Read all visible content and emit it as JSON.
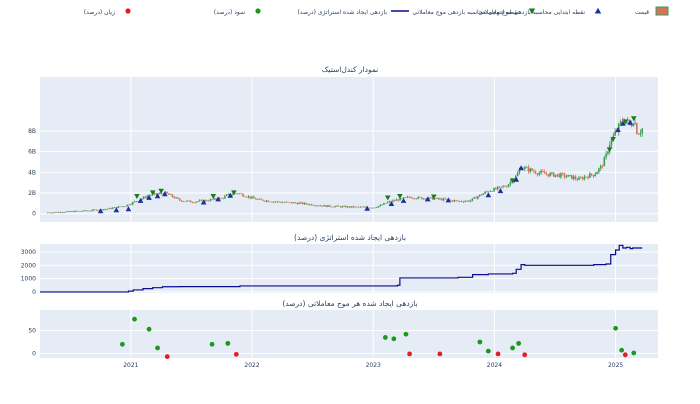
{
  "legend": {
    "items": [
      {
        "id": "price",
        "label": "قیمت",
        "symbol": "candle",
        "color": "#d2735a"
      },
      {
        "id": "entry",
        "label": "نقطه ابتدایی محاسبه بازدهی موج معاملاتی",
        "symbol": "triangle-up",
        "color": "#1c2fa0"
      },
      {
        "id": "exit",
        "label": "نقطه انتهایی محاسبه بازدهی موج معاملاتی",
        "symbol": "triangle-down",
        "color": "#1e7a1e"
      },
      {
        "id": "strategy",
        "label": "بازدهی ایجاد شده استراتژی (درصد)",
        "symbol": "line",
        "color": "#0b0b8c"
      },
      {
        "id": "profit",
        "label": "سود (درصد)",
        "symbol": "dot",
        "color": "#1a9a1a"
      },
      {
        "id": "loss",
        "label": "زیان (درصد)",
        "symbol": "dot",
        "color": "#e02020"
      }
    ]
  },
  "titles": {
    "candlestick": "نمودار کندل‌استیک",
    "strategy": "بازدهی ایجاد شده استراتژی (درصد)",
    "waves": "بازدهی ایجاد شده هر موج معاملاتی (درصد)"
  },
  "colors": {
    "plot_bg": "#e5ecf6",
    "grid": "#ffffff",
    "up": "#3f9a55",
    "down": "#d2735a",
    "line": "#0b0b8c",
    "profit": "#1a9a1a",
    "loss": "#e02020",
    "entry": "#1c2fa0",
    "exit": "#1e7a1e"
  },
  "chart_data": [
    {
      "type": "candlestick",
      "title": "نمودار کندل‌استیک",
      "x_range": [
        2020.25,
        2025.35
      ],
      "ylim": [
        -0.8,
        13.2
      ],
      "yticks": [
        0,
        2,
        4,
        6,
        8
      ],
      "ytick_labels": [
        "0",
        "2B",
        "4B",
        "6B",
        "8B"
      ],
      "grid": true,
      "price_path": [
        [
          2020.3,
          0.1
        ],
        [
          2020.5,
          0.2
        ],
        [
          2020.65,
          0.3
        ],
        [
          2020.8,
          0.45
        ],
        [
          2020.95,
          0.75
        ],
        [
          2021.0,
          1.0
        ],
        [
          2021.08,
          1.4
        ],
        [
          2021.15,
          1.8
        ],
        [
          2021.2,
          1.85
        ],
        [
          2021.28,
          2.0
        ],
        [
          2021.32,
          1.8
        ],
        [
          2021.4,
          1.3
        ],
        [
          2021.5,
          1.15
        ],
        [
          2021.6,
          1.25
        ],
        [
          2021.7,
          1.4
        ],
        [
          2021.75,
          1.5
        ],
        [
          2021.8,
          1.8
        ],
        [
          2021.88,
          2.0
        ],
        [
          2021.95,
          1.7
        ],
        [
          2022.05,
          1.35
        ],
        [
          2022.2,
          1.15
        ],
        [
          2022.4,
          1.0
        ],
        [
          2022.6,
          0.75
        ],
        [
          2022.8,
          0.65
        ],
        [
          2023.0,
          0.6
        ],
        [
          2023.05,
          0.75
        ],
        [
          2023.12,
          1.1
        ],
        [
          2023.2,
          1.35
        ],
        [
          2023.3,
          1.6
        ],
        [
          2023.4,
          1.5
        ],
        [
          2023.5,
          1.45
        ],
        [
          2023.6,
          1.35
        ],
        [
          2023.7,
          1.2
        ],
        [
          2023.8,
          1.25
        ],
        [
          2023.85,
          1.6
        ],
        [
          2023.9,
          1.9
        ],
        [
          2023.95,
          2.2
        ],
        [
          2024.02,
          2.4
        ],
        [
          2024.1,
          2.7
        ],
        [
          2024.18,
          3.6
        ],
        [
          2024.22,
          4.5
        ],
        [
          2024.27,
          4.3
        ],
        [
          2024.35,
          4.0
        ],
        [
          2024.45,
          3.8
        ],
        [
          2024.55,
          3.7
        ],
        [
          2024.65,
          3.5
        ],
        [
          2024.7,
          3.3
        ],
        [
          2024.75,
          3.6
        ],
        [
          2024.82,
          3.8
        ],
        [
          2024.88,
          4.5
        ],
        [
          2024.92,
          5.5
        ],
        [
          2024.95,
          6.8
        ],
        [
          2024.98,
          7.4
        ],
        [
          2025.02,
          8.2
        ],
        [
          2025.05,
          8.9
        ],
        [
          2025.08,
          9.1
        ],
        [
          2025.12,
          8.5
        ],
        [
          2025.15,
          9.2
        ],
        [
          2025.18,
          7.8
        ],
        [
          2025.22,
          8.2
        ]
      ],
      "entry_markers": [
        [
          2020.75,
          0.45
        ],
        [
          2020.88,
          0.55
        ],
        [
          2020.98,
          0.65
        ],
        [
          2021.08,
          1.45
        ],
        [
          2021.15,
          1.75
        ],
        [
          2021.22,
          1.9
        ],
        [
          2021.28,
          2.1
        ],
        [
          2021.6,
          1.3
        ],
        [
          2021.72,
          1.6
        ],
        [
          2021.82,
          1.95
        ],
        [
          2022.95,
          0.7
        ],
        [
          2023.15,
          1.15
        ],
        [
          2023.25,
          1.45
        ],
        [
          2023.45,
          1.6
        ],
        [
          2023.62,
          1.5
        ],
        [
          2023.95,
          2.0
        ],
        [
          2024.05,
          2.4
        ],
        [
          2024.18,
          3.5
        ],
        [
          2024.22,
          4.6
        ],
        [
          2025.02,
          8.3
        ],
        [
          2025.06,
          8.9
        ],
        [
          2025.12,
          9.0
        ]
      ],
      "exit_markers": [
        [
          2021.05,
          1.5
        ],
        [
          2021.18,
          1.85
        ],
        [
          2021.25,
          2.0
        ],
        [
          2021.68,
          1.5
        ],
        [
          2021.85,
          1.85
        ],
        [
          2023.12,
          1.35
        ],
        [
          2023.22,
          1.5
        ],
        [
          2023.5,
          1.45
        ],
        [
          2024.15,
          3.0
        ],
        [
          2024.95,
          6.0
        ],
        [
          2024.98,
          7.0
        ],
        [
          2025.08,
          8.7
        ],
        [
          2025.15,
          9.0
        ]
      ]
    },
    {
      "type": "line",
      "title": "بازدهی ایجاد شده استراتژی (درصد)",
      "x_range": [
        2020.25,
        2025.35
      ],
      "ylim": [
        -80,
        3600
      ],
      "yticks": [
        0,
        1000,
        2000,
        3000
      ],
      "series": [
        {
          "x": [
            2020.25,
            2020.9,
            2020.98,
            2021.02,
            2021.1,
            2021.18,
            2021.26,
            2021.4,
            2021.82,
            2021.9,
            2022.5,
            2022.95,
            2023.2,
            2023.22,
            2023.7,
            2023.8,
            2023.82,
            2023.95,
            2024.0,
            2024.15,
            2024.18,
            2024.22,
            2024.25,
            2024.8,
            2024.82,
            2024.92,
            2024.96,
            2025.0,
            2025.03,
            2025.06,
            2025.09,
            2025.12,
            2025.14,
            2025.22
          ],
          "values": [
            0,
            0,
            60,
            150,
            250,
            320,
            390,
            400,
            400,
            450,
            450,
            450,
            500,
            1050,
            1100,
            1100,
            1300,
            1350,
            1350,
            1400,
            1700,
            2050,
            2000,
            2000,
            2050,
            2100,
            2800,
            3150,
            3500,
            3300,
            3350,
            3250,
            3300,
            3300
          ]
        }
      ]
    },
    {
      "type": "scatter",
      "title": "بازدهی ایجاد شده هر موج معاملاتی (درصد)",
      "x_range": [
        2020.25,
        2025.35
      ],
      "ylim": [
        -10,
        95
      ],
      "yticks": [
        0,
        50
      ],
      "xticks": [
        2021,
        2022,
        2023,
        2024,
        2025
      ],
      "xtick_labels": [
        "2021",
        "2022",
        "2023",
        "2024",
        "2025"
      ],
      "series": [
        {
          "name": "سود (درصد)",
          "x": [
            2020.93,
            2021.03,
            2021.15,
            2021.22,
            2021.67,
            2021.8,
            2023.1,
            2023.17,
            2023.27,
            2023.88,
            2023.95,
            2024.15,
            2024.2,
            2025.0,
            2025.05,
            2025.15
          ],
          "values": [
            20,
            75,
            53,
            12,
            20,
            22,
            35,
            32,
            42,
            25,
            5,
            12,
            22,
            55,
            7,
            1
          ]
        },
        {
          "name": "زیان (درصد)",
          "x": [
            2021.3,
            2021.87,
            2023.3,
            2023.55,
            2024.03,
            2024.25,
            2025.08
          ],
          "values": [
            -7,
            -2,
            -1,
            -1,
            -1,
            -3,
            -3
          ]
        }
      ]
    }
  ]
}
